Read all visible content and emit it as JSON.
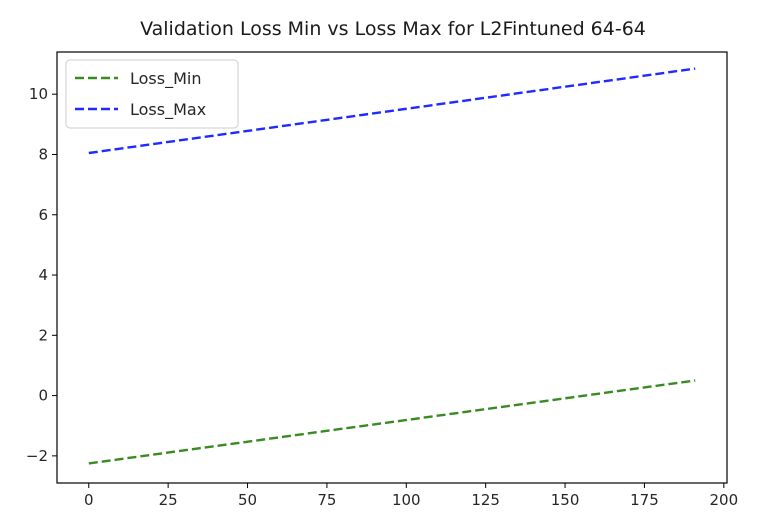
{
  "chart_data": {
    "type": "line",
    "title": "Validation Loss Min vs Loss Max for L2Fintuned 64-64",
    "xlabel": "",
    "ylabel": "",
    "xlim": [
      -10,
      201
    ],
    "ylim": [
      -2.9,
      11.4
    ],
    "xticks": [
      0,
      25,
      50,
      75,
      100,
      125,
      150,
      175,
      200
    ],
    "yticks": [
      -2,
      0,
      2,
      4,
      6,
      8,
      10
    ],
    "grid": false,
    "legend": "top-left",
    "series": [
      {
        "name": "Loss_Min",
        "color": "#3a8a22",
        "style": "dashed",
        "x": [
          0,
          191
        ],
        "y": [
          -2.25,
          0.5
        ]
      },
      {
        "name": "Loss_Max",
        "color": "#1f2aff",
        "style": "dashed",
        "x": [
          0,
          191
        ],
        "y": [
          8.05,
          10.85
        ]
      }
    ]
  }
}
